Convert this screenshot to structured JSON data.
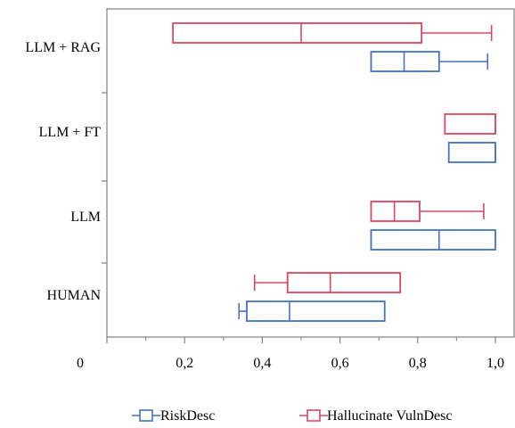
{
  "chart_data": {
    "type": "boxplot",
    "orientation": "horizontal",
    "categories": [
      "LLM + RAG",
      "LLM + FT",
      "LLM",
      "HUMAN"
    ],
    "xlim": [
      0,
      1.0
    ],
    "x_ticks": [
      "0",
      "0,2",
      "0,4",
      "0,6",
      "0,8",
      "1,0"
    ],
    "x_tick_values": [
      0,
      0.2,
      0.4,
      0.6,
      0.8,
      1.0
    ],
    "grid": false,
    "legend_position": "bottom",
    "series": [
      {
        "name": "RiskDesc",
        "color": "#4472c4",
        "boxes": [
          {
            "category": "LLM + RAG",
            "min": 0.68,
            "q1": 0.68,
            "median": 0.765,
            "q3": 0.855,
            "max": 0.98
          },
          {
            "category": "LLM + FT",
            "min": 0.88,
            "q1": 0.88,
            "median": 1.0,
            "q3": 1.0,
            "max": 1.0
          },
          {
            "category": "LLM",
            "min": 0.68,
            "q1": 0.68,
            "median": 0.855,
            "q3": 1.0,
            "max": 1.0
          },
          {
            "category": "HUMAN",
            "min": 0.34,
            "q1": 0.36,
            "median": 0.47,
            "q3": 0.715,
            "max": 0.715
          }
        ]
      },
      {
        "name": "Hallucinate VulnDesc",
        "color": "#d9485f",
        "boxes": [
          {
            "category": "LLM + RAG",
            "min": 0.17,
            "q1": 0.17,
            "median": 0.5,
            "q3": 0.81,
            "max": 0.99
          },
          {
            "category": "LLM + FT",
            "min": 0.87,
            "q1": 0.87,
            "median": 1.0,
            "q3": 1.0,
            "max": 1.0
          },
          {
            "category": "LLM",
            "min": 0.68,
            "q1": 0.68,
            "median": 0.74,
            "q3": 0.805,
            "max": 0.97
          },
          {
            "category": "HUMAN",
            "min": 0.38,
            "q1": 0.465,
            "median": 0.575,
            "q3": 0.755,
            "max": 0.755
          }
        ]
      }
    ]
  }
}
